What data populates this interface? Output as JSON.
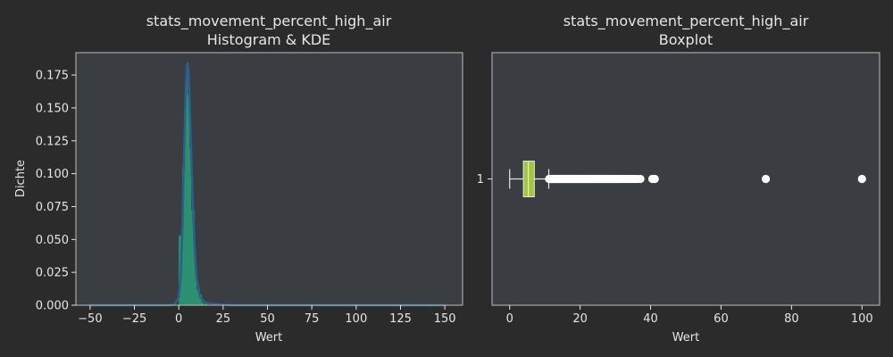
{
  "figure": {
    "background": "#2b2b2b",
    "axes_background": "#3a3e42",
    "text_color": "#e6e6e6"
  },
  "chart_data": [
    {
      "type": "histogram",
      "title": "stats_movement_percent_high_air",
      "subtitle": "Histogram & KDE",
      "xlabel": "Wert",
      "ylabel": "Dichte",
      "xlim": [
        -58,
        160
      ],
      "ylim": [
        0,
        0.192
      ],
      "xticks": [
        -50,
        -25,
        0,
        25,
        50,
        75,
        100,
        125,
        150
      ],
      "xtick_labels": [
        "−50",
        "−25",
        "0",
        "25",
        "50",
        "75",
        "100",
        "125",
        "150"
      ],
      "yticks": [
        0,
        0.025,
        0.05,
        0.075,
        0.1,
        0.125,
        0.15,
        0.175
      ],
      "ytick_labels": [
        "0.000",
        "0.025",
        "0.050",
        "0.075",
        "0.100",
        "0.125",
        "0.150",
        "0.175"
      ],
      "hist_color": "#2a9d78",
      "kde_color": "#2c5f8a",
      "bins": [
        {
          "x0": 0,
          "x1": 1,
          "density": 0.053
        },
        {
          "x0": 1,
          "x1": 2,
          "density": 0.053
        },
        {
          "x0": 2,
          "x1": 3,
          "density": 0.105
        },
        {
          "x0": 3,
          "x1": 4,
          "density": 0.148
        },
        {
          "x0": 4,
          "x1": 5,
          "density": 0.173
        },
        {
          "x0": 5,
          "x1": 6,
          "density": 0.16
        },
        {
          "x0": 6,
          "x1": 7,
          "density": 0.12
        },
        {
          "x0": 7,
          "x1": 8,
          "density": 0.073
        },
        {
          "x0": 8,
          "x1": 9,
          "density": 0.072
        },
        {
          "x0": 9,
          "x1": 10,
          "density": 0.03
        },
        {
          "x0": 10,
          "x1": 11,
          "density": 0.012
        },
        {
          "x0": 11,
          "x1": 12,
          "density": 0.009
        },
        {
          "x0": 12,
          "x1": 13,
          "density": 0.008
        },
        {
          "x0": 13,
          "x1": 14,
          "density": 0.002
        },
        {
          "x0": 14,
          "x1": 16,
          "density": 0.001
        }
      ],
      "kde": {
        "x": [
          -50,
          -20,
          -5,
          -2,
          0,
          1,
          2,
          3,
          4,
          4.5,
          5,
          5.5,
          6,
          7,
          8,
          9,
          10,
          12,
          15,
          20,
          30,
          60,
          100,
          150
        ],
        "y": [
          0,
          0,
          0,
          0.001,
          0.006,
          0.02,
          0.055,
          0.115,
          0.165,
          0.181,
          0.184,
          0.178,
          0.16,
          0.115,
          0.075,
          0.042,
          0.021,
          0.006,
          0.002,
          0.001,
          0,
          0,
          0,
          0
        ]
      }
    },
    {
      "type": "boxplot",
      "title": "stats_movement_percent_high_air",
      "subtitle": "Boxplot",
      "xlabel": "Wert",
      "xlim": [
        -5,
        105
      ],
      "xticks": [
        0,
        20,
        40,
        60,
        80,
        100
      ],
      "xtick_labels": [
        "0",
        "20",
        "40",
        "60",
        "80",
        "100"
      ],
      "yticks": [
        1
      ],
      "ytick_labels": [
        "1"
      ],
      "box_color": "#a4c639",
      "median_color": "#e6e6e6",
      "whisker_low": 0,
      "q1": 3.9,
      "median": 5.3,
      "q3": 7,
      "whisker_high": 11.1,
      "outliers": [
        11.2,
        11.5,
        11.8,
        12.1,
        12.4,
        12.7,
        13,
        13.3,
        13.6,
        13.9,
        14.2,
        14.5,
        14.8,
        15.1,
        15.4,
        15.7,
        16,
        16.3,
        16.6,
        16.9,
        17.2,
        17.5,
        17.8,
        18.1,
        18.4,
        18.7,
        19,
        19.3,
        19.6,
        19.9,
        20.2,
        20.5,
        20.8,
        21.1,
        21.4,
        21.7,
        22,
        22.4,
        22.8,
        23.2,
        23.6,
        24,
        24.4,
        24.8,
        25.2,
        25.6,
        26,
        26.4,
        26.8,
        27.2,
        27.6,
        28,
        28.4,
        28.8,
        29.2,
        29.6,
        30,
        30.4,
        30.8,
        31.2,
        31.8,
        32.5,
        33.2,
        34,
        34.7,
        35.4,
        36.2,
        37.1,
        40.5,
        41.2,
        72.7,
        100
      ]
    }
  ]
}
